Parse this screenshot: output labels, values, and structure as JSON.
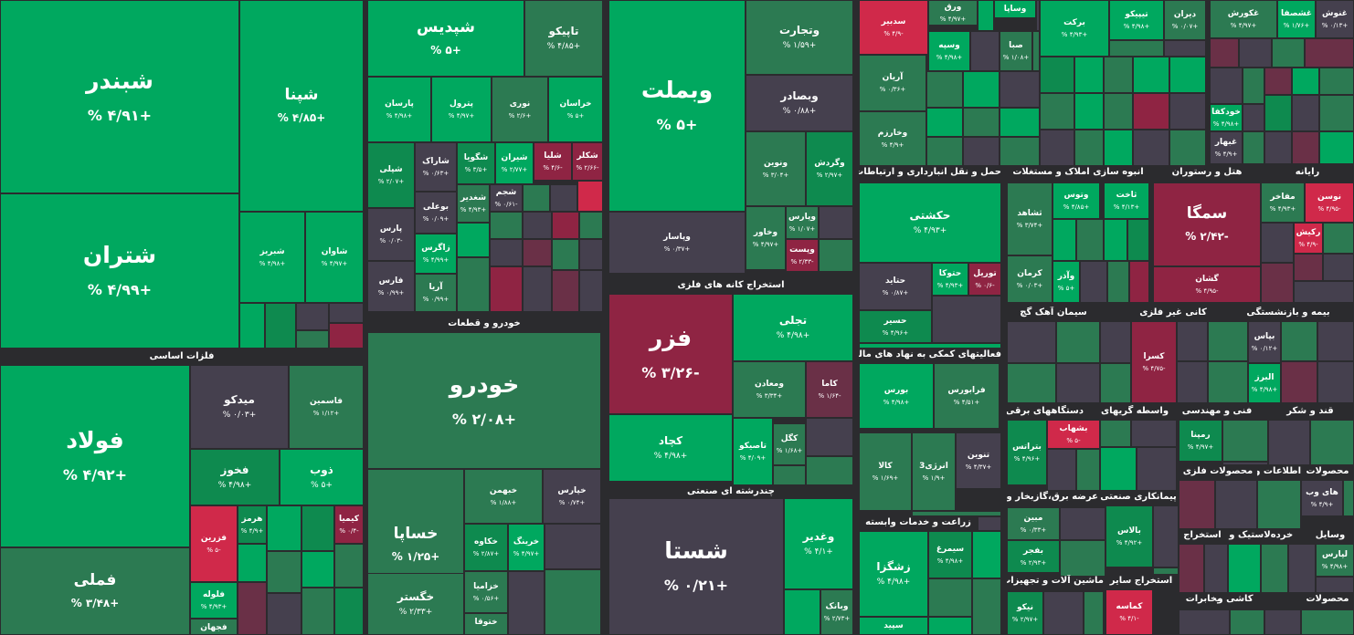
{
  "colors": {
    "G": "#00a85f",
    "g": "#0e8a4f",
    "d": "#2c7a52",
    "u": "#45404e",
    "w": "#6a3047",
    "r": "#8f2443",
    "R": "#d0294a",
    "bg": "#2b2b2e"
  },
  "chart_data": {
    "type": "treemap",
    "title": "",
    "sectors": [
      "فلزات اساسی",
      "خودرو و قطعات",
      "استخراج کانه های فلزی",
      "چندرشته ای صنعتی",
      "حمل و نقل انبارداری و ارتباطات",
      "انبوه سازی املاک و مستغلات",
      "هتل و رستوران",
      "رایانه",
      "فعالیتهای کمکی به نهاد های مالی",
      "سیمان آهک گچ",
      "کانی غیر فلزی",
      "بیمه و بازنشستگی",
      "دستگاههای برقی",
      "واسطه گریهای",
      "فنی و مهندسی",
      "قند و شکر",
      "زراعت و خدمات وابسته",
      "محصولات فلزی",
      "اطلاعات و",
      "محصولات",
      "عرضه برق،گازبخار و",
      "پیمانکاری صنعتی",
      "خرده",
      "وسایل",
      "ماشین آلات و تجهیزات",
      "استخراج سایر",
      "کاشی و",
      "لاستیک و",
      "مخابرات",
      "استخراج",
      "محصولات"
    ],
    "tiles": [
      {
        "name": "شبندر",
        "change": "+۴/۹۱ %"
      },
      {
        "name": "شپنا",
        "change": "+۴/۸۵ %"
      },
      {
        "name": "شتران",
        "change": "+۴/۹۹ %"
      },
      {
        "name": "شبریز",
        "change": "+۴/۹۸ %"
      },
      {
        "name": "شاوان",
        "change": "+۴/۹۷ %"
      },
      {
        "name": "فولاد",
        "change": "+۴/۹۲ %"
      },
      {
        "name": "میدکو",
        "change": "+۰/۰۳ %"
      },
      {
        "name": "فاسمین",
        "change": "+۱/۱۲ %"
      },
      {
        "name": "فخوز",
        "change": "+۴/۹۸ %"
      },
      {
        "name": "ذوب",
        "change": "+۵ %"
      },
      {
        "name": "فملی",
        "change": "+۳/۴۸ %"
      },
      {
        "name": "فزرین",
        "change": "-۵ %"
      },
      {
        "name": "هرمز",
        "change": "+۴/۹ %"
      },
      {
        "name": "کیمیا",
        "change": "-۰/۴ %"
      },
      {
        "name": "فلوله",
        "change": "+۴/۹۳ %"
      },
      {
        "name": "فجهان",
        "change": ""
      },
      {
        "name": "شپدیس",
        "change": "+۵ %"
      },
      {
        "name": "تاپیکو",
        "change": "+۴/۸۵ %"
      },
      {
        "name": "پارسان",
        "change": "+۴/۹۸ %"
      },
      {
        "name": "پترول",
        "change": "+۴/۹۷ %"
      },
      {
        "name": "نوری",
        "change": "+۲/۶ %"
      },
      {
        "name": "خراسان",
        "change": "+۵ %"
      },
      {
        "name": "شپلی",
        "change": "+۲/۰۷ %"
      },
      {
        "name": "شاراک",
        "change": "+۰/۶۳ %"
      },
      {
        "name": "شگویا",
        "change": "+۳/۵ %"
      },
      {
        "name": "شیران",
        "change": "+۲/۷۷ %"
      },
      {
        "name": "شلیا",
        "change": "-۴/۶ %"
      },
      {
        "name": "شکلر",
        "change": "-۲/۶۶ %"
      },
      {
        "name": "بوعلی",
        "change": "+۰/۰۹ %"
      },
      {
        "name": "شغدیر",
        "change": "+۴/۹۳ %"
      },
      {
        "name": "شجم",
        "change": "-۰/۶۱ %"
      },
      {
        "name": "پارس",
        "change": "-۰/۰۳ %"
      },
      {
        "name": "زاگرس",
        "change": "+۴/۹۹ %"
      },
      {
        "name": "فارس",
        "change": "+۰/۹۹ %"
      },
      {
        "name": "آریا",
        "change": "+۰/۹۹ %"
      },
      {
        "name": "خودرو",
        "change": "+۲/۰۸ %"
      },
      {
        "name": "خساپا",
        "change": "+۱/۲۵ %"
      },
      {
        "name": "خبهمن",
        "change": "+۱/۸۸ %"
      },
      {
        "name": "خپارس",
        "change": "+۰/۷۴ %"
      },
      {
        "name": "خکاوه",
        "change": "+۲/۸۷ %"
      },
      {
        "name": "خرینگ",
        "change": "+۴/۹۷ %"
      },
      {
        "name": "خگستر",
        "change": "+۲/۳۳ %"
      },
      {
        "name": "خزامیا",
        "change": "+۰/۵۶ %"
      },
      {
        "name": "ختوقا",
        "change": ""
      },
      {
        "name": "وبملت",
        "change": "+۵ %"
      },
      {
        "name": "وتجارت",
        "change": "+۱/۵۹ %"
      },
      {
        "name": "وبصادر",
        "change": "+۰/۸۸ %"
      },
      {
        "name": "ونوین",
        "change": "+۳/۰۴ %"
      },
      {
        "name": "وگردش",
        "change": "+۲/۹۷ %"
      },
      {
        "name": "وپاسار",
        "change": "+۰/۳۷ %"
      },
      {
        "name": "وخاور",
        "change": "+۴/۹۷ %"
      },
      {
        "name": "وپارس",
        "change": "+۱/۰۷ %"
      },
      {
        "name": "وپست",
        "change": "-۲/۳۳ %"
      },
      {
        "name": "فزر",
        "change": "-۳/۲۶ %"
      },
      {
        "name": "تجلی",
        "change": "+۴/۹۸ %"
      },
      {
        "name": "ومعادن",
        "change": "+۳/۳۴ %"
      },
      {
        "name": "کاما",
        "change": "-۱/۶۴ %"
      },
      {
        "name": "کچاد",
        "change": "+۴/۹۸ %"
      },
      {
        "name": "تاصیکو",
        "change": "+۴/۰۹ %"
      },
      {
        "name": "کگل",
        "change": "+۱/۶۸ %"
      },
      {
        "name": "شستا",
        "change": "+۰/۲۱ %"
      },
      {
        "name": "وغدیر",
        "change": "+۴/۱ %"
      },
      {
        "name": "وبانک",
        "change": "+۲/۷۳ %"
      },
      {
        "name": "سدبیر",
        "change": "-۴/۹ %"
      },
      {
        "name": "ورق",
        "change": "+۴/۹۷ %"
      },
      {
        "name": "وساپا",
        "change": "+۴/۹۷ %"
      },
      {
        "name": "وسپه",
        "change": "+۴/۹۸ %"
      },
      {
        "name": "صبا",
        "change": "+۱/۰۸ %"
      },
      {
        "name": "آریان",
        "change": "+۰/۳۶ %"
      },
      {
        "name": "وخارزم",
        "change": "+۴/۹ %"
      },
      {
        "name": "برکت",
        "change": "+۴/۹۳ %"
      },
      {
        "name": "تیپیکو",
        "change": "+۴/۹۸ %"
      },
      {
        "name": "دیران",
        "change": "+۰/۰۷ %"
      },
      {
        "name": "غکورش",
        "change": "+۴/۹۷ %"
      },
      {
        "name": "غشصفا",
        "change": "+۱/۷۶ %"
      },
      {
        "name": "غنوش",
        "change": "+۰/۱۳ %"
      },
      {
        "name": "خودکفا",
        "change": "+۴/۹۸ %"
      },
      {
        "name": "غبهار",
        "change": "+۴/۹ %"
      },
      {
        "name": "حکشتی",
        "change": "+۴/۹۳ %"
      },
      {
        "name": "حتاید",
        "change": "+۰/۸۷ %"
      },
      {
        "name": "حتوکا",
        "change": "+۴/۹۳ %"
      },
      {
        "name": "توریل",
        "change": "-۰/۶ %"
      },
      {
        "name": "حسیر",
        "change": "+۴/۹۶ %"
      },
      {
        "name": "ثشاهد",
        "change": "+۳/۷۴ %"
      },
      {
        "name": "وتوس",
        "change": "+۴/۸۵ %"
      },
      {
        "name": "ثاخت",
        "change": "+۴/۱۳ %"
      },
      {
        "name": "کرمان",
        "change": "+۰/۰۳ %"
      },
      {
        "name": "وآذر",
        "change": "+۵ %"
      },
      {
        "name": "سمگا",
        "change": "-۲/۴۲ %"
      },
      {
        "name": "گشان",
        "change": "-۴/۹۵ %"
      },
      {
        "name": "مفاخر",
        "change": "+۴/۹۳ %"
      },
      {
        "name": "نوسن",
        "change": "-۴/۹۵ %"
      },
      {
        "name": "رکیش",
        "change": "-۴/۹ %"
      },
      {
        "name": "بورس",
        "change": "+۴/۹۸ %"
      },
      {
        "name": "فرابورس",
        "change": "+۴/۵۱ %"
      },
      {
        "name": "کالا",
        "change": "+۱/۶۹ %"
      },
      {
        "name": "انرژی3",
        "change": "+۱/۹ %"
      },
      {
        "name": "تنوین",
        "change": "+۴/۳۷ %"
      },
      {
        "name": "بتراتس",
        "change": "+۴/۹۶ %"
      },
      {
        "name": "بشهاب",
        "change": "-۵ %"
      },
      {
        "name": "کسرا",
        "change": "-۴/۷۵ %"
      },
      {
        "name": "بپاس",
        "change": "+۰/۱۲ %"
      },
      {
        "name": "البرز",
        "change": "+۴/۹۸ %"
      },
      {
        "name": "رمپنا",
        "change": "+۴/۹۷ %"
      },
      {
        "name": "های وب",
        "change": "+۴/۹ %"
      },
      {
        "name": "مبین",
        "change": "+۰/۳۳ %"
      },
      {
        "name": "بفجر",
        "change": "+۲/۹۳ %"
      },
      {
        "name": "بالاس",
        "change": "+۴/۹۲ %"
      },
      {
        "name": "لپارس",
        "change": "+۴/۹۸ %"
      },
      {
        "name": "زشگزا",
        "change": "+۴/۹۸ %"
      },
      {
        "name": "سیمرغ",
        "change": "+۴/۹۸ %"
      },
      {
        "name": "سپید",
        "change": ""
      },
      {
        "name": "نیکو",
        "change": "+۲/۹۷ %"
      },
      {
        "name": "کماسه",
        "change": "-۴/۱ %"
      }
    ]
  }
}
